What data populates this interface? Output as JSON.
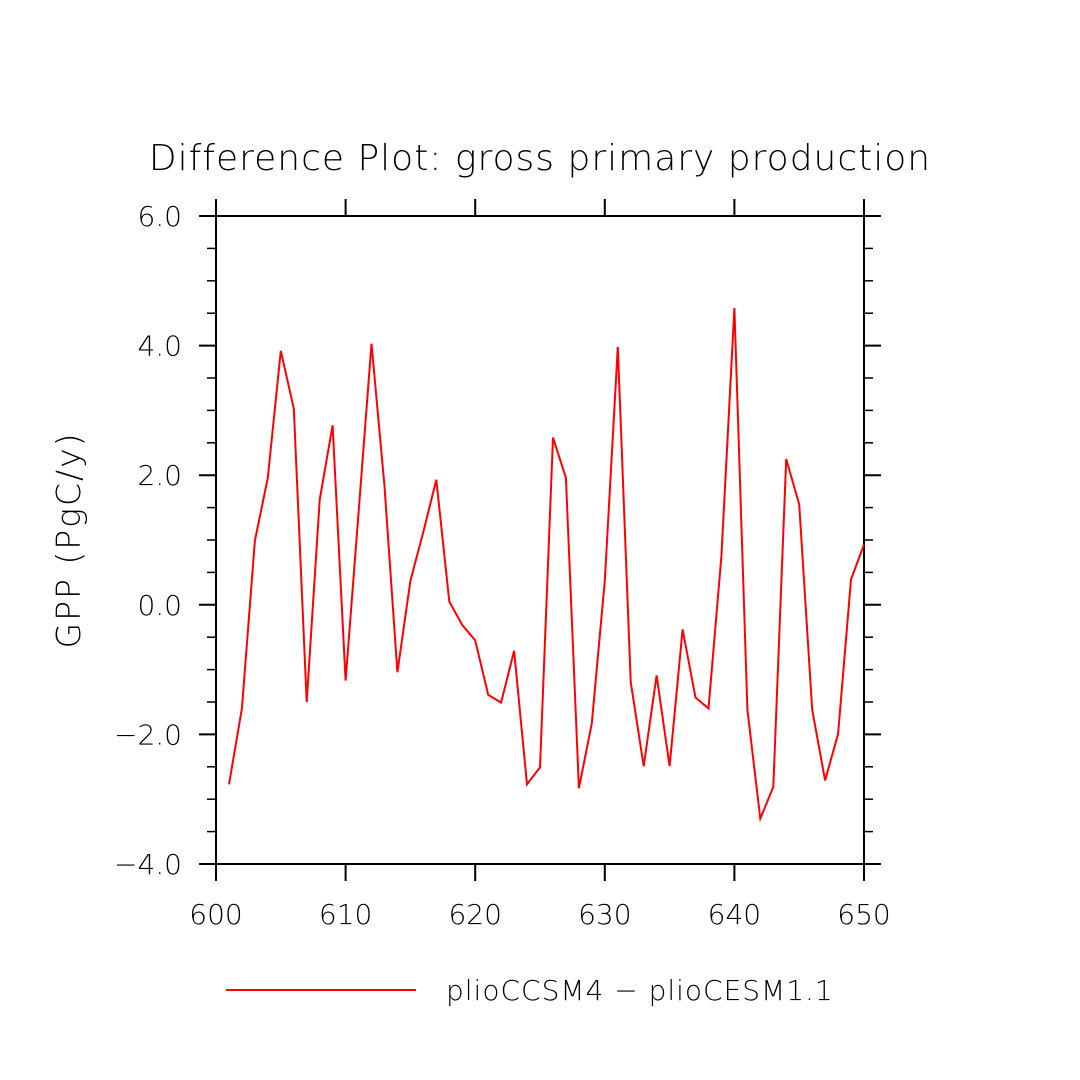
{
  "chart_data": {
    "type": "line",
    "title": "Difference Plot: gross primary production",
    "xlabel": "",
    "ylabel": "GPP   (PgC/y)",
    "xlim": [
      600,
      650
    ],
    "ylim": [
      -4.0,
      6.0
    ],
    "x_ticks": [
      600,
      610,
      620,
      630,
      640,
      650
    ],
    "x_tick_labels": [
      "600",
      "610",
      "620",
      "630",
      "640",
      "650"
    ],
    "y_ticks": [
      -4.0,
      -2.0,
      0.0,
      2.0,
      4.0,
      6.0
    ],
    "y_tick_labels": [
      "−4.0",
      "−2.0",
      "0.0",
      "2.0",
      "4.0",
      "6.0"
    ],
    "grid": false,
    "legend_position": "bottom",
    "series": [
      {
        "name": "plioCCSM4 − plioCESM1.1",
        "color": "#ff0000",
        "x": [
          601,
          602,
          603,
          604,
          605,
          606,
          607,
          608,
          609,
          610,
          611,
          612,
          613,
          614,
          615,
          616,
          617,
          618,
          619,
          620,
          621,
          622,
          623,
          624,
          625,
          626,
          627,
          628,
          629,
          630,
          631,
          632,
          633,
          634,
          635,
          636,
          637,
          638,
          639,
          640,
          641,
          642,
          643,
          644,
          645,
          646,
          647,
          648,
          649,
          650
        ],
        "y": [
          -2.77,
          -1.6,
          0.99,
          1.96,
          3.92,
          3.03,
          -1.5,
          1.62,
          2.77,
          -1.17,
          1.43,
          4.03,
          1.83,
          -1.04,
          0.37,
          1.13,
          1.93,
          0.05,
          -0.31,
          -0.55,
          -1.39,
          -1.51,
          -0.71,
          -2.77,
          -2.51,
          2.58,
          1.96,
          -2.83,
          -1.83,
          0.37,
          3.98,
          -1.19,
          -2.49,
          -1.09,
          -2.49,
          -0.38,
          -1.43,
          -1.6,
          0.75,
          4.58,
          -1.62,
          -3.3,
          -2.81,
          2.25,
          1.55,
          -1.62,
          -2.71,
          -1.99,
          0.39,
          0.93
        ]
      }
    ]
  }
}
